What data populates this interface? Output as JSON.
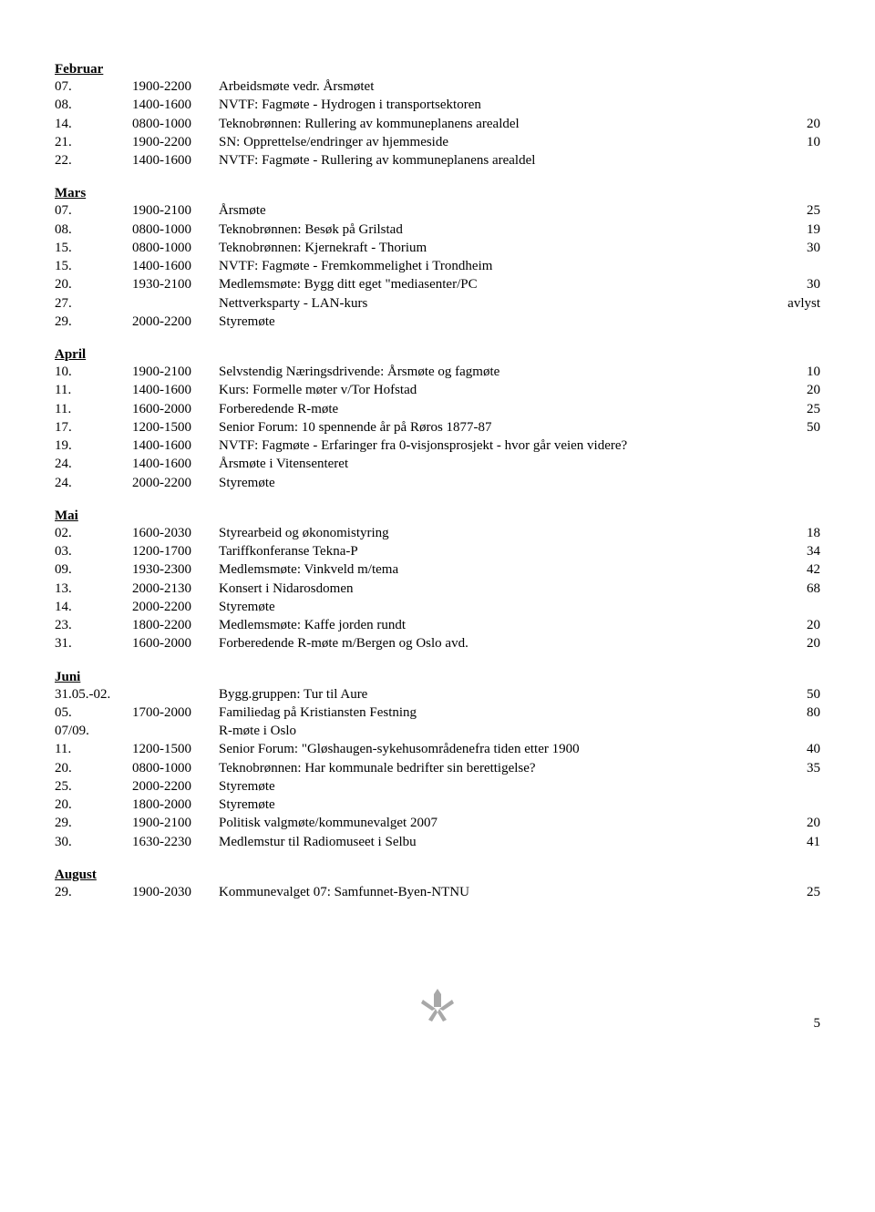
{
  "months": [
    {
      "name": "Februar",
      "rows": [
        {
          "day": "07.",
          "time": "1900-2200",
          "desc": "Arbeidsmøte vedr. Årsmøtet",
          "cnt": ""
        },
        {
          "day": "08.",
          "time": "1400-1600",
          "desc": "NVTF: Fagmøte - Hydrogen i transportsektoren",
          "cnt": ""
        },
        {
          "day": "14.",
          "time": "0800-1000",
          "desc": "Teknobrønnen: Rullering av kommuneplanens arealdel",
          "cnt": "20"
        },
        {
          "day": "21.",
          "time": "1900-2200",
          "desc": "SN: Opprettelse/endringer av hjemmeside",
          "cnt": "10"
        },
        {
          "day": "22.",
          "time": "1400-1600",
          "desc": "NVTF: Fagmøte - Rullering av kommuneplanens arealdel",
          "cnt": ""
        }
      ]
    },
    {
      "name": "Mars",
      "rows": [
        {
          "day": "07.",
          "time": "1900-2100",
          "desc": "Årsmøte",
          "cnt": "25"
        },
        {
          "day": "08.",
          "time": "0800-1000",
          "desc": "Teknobrønnen: Besøk på Grilstad",
          "cnt": "19"
        },
        {
          "day": "15.",
          "time": "0800-1000",
          "desc": "Teknobrønnen: Kjernekraft - Thorium",
          "cnt": "30"
        },
        {
          "day": "15.",
          "time": "1400-1600",
          "desc": "NVTF: Fagmøte - Fremkommelighet i Trondheim",
          "cnt": ""
        },
        {
          "day": "20.",
          "time": "1930-2100",
          "desc": "Medlemsmøte: Bygg ditt eget \"mediasenter/PC",
          "cnt": "30"
        },
        {
          "day": "27.",
          "time": "",
          "desc": "Nettverksparty - LAN-kurs",
          "cnt": "avlyst"
        },
        {
          "day": "29.",
          "time": "2000-2200",
          "desc": "Styremøte",
          "cnt": ""
        }
      ]
    },
    {
      "name": "April",
      "rows": [
        {
          "day": "10.",
          "time": "1900-2100",
          "desc": "Selvstendig Næringsdrivende: Årsmøte og fagmøte",
          "cnt": "10"
        },
        {
          "day": "11.",
          "time": "1400-1600",
          "desc": "Kurs: Formelle møter v/Tor Hofstad",
          "cnt": "20"
        },
        {
          "day": "11.",
          "time": "1600-2000",
          "desc": "Forberedende R-møte",
          "cnt": "25"
        },
        {
          "day": "17.",
          "time": "1200-1500",
          "desc": "Senior Forum: 10 spennende år på Røros 1877-87",
          "cnt": "50"
        },
        {
          "day": "19.",
          "time": "1400-1600",
          "desc": "NVTF: Fagmøte - Erfaringer fra 0-visjonsprosjekt - hvor går veien videre?",
          "cnt": ""
        },
        {
          "day": "24.",
          "time": "1400-1600",
          "desc": "Årsmøte i Vitensenteret",
          "cnt": ""
        },
        {
          "day": "24.",
          "time": "2000-2200",
          "desc": "Styremøte",
          "cnt": ""
        }
      ]
    },
    {
      "name": "Mai",
      "rows": [
        {
          "day": "02.",
          "time": "1600-2030",
          "desc": "Styrearbeid og økonomistyring",
          "cnt": "18"
        },
        {
          "day": "03.",
          "time": "1200-1700",
          "desc": "Tariffkonferanse Tekna-P",
          "cnt": "34"
        },
        {
          "day": "09.",
          "time": "1930-2300",
          "desc": "Medlemsmøte: Vinkveld m/tema",
          "cnt": "42"
        },
        {
          "day": "13.",
          "time": "2000-2130",
          "desc": "Konsert i Nidarosdomen",
          "cnt": "68"
        },
        {
          "day": "14.",
          "time": "2000-2200",
          "desc": "Styremøte",
          "cnt": ""
        },
        {
          "day": "23.",
          "time": "1800-2200",
          "desc": "Medlemsmøte: Kaffe jorden rundt",
          "cnt": "20"
        },
        {
          "day": "31.",
          "time": "1600-2000",
          "desc": "Forberedende R-møte m/Bergen og Oslo avd.",
          "cnt": "20"
        }
      ]
    },
    {
      "name": "Juni",
      "rows": [
        {
          "day": "31.05.-02.",
          "time": "",
          "desc": "Bygg.gruppen: Tur til Aure",
          "cnt": "50"
        },
        {
          "day": "05.",
          "time": "1700-2000",
          "desc": "Familiedag på Kristiansten Festning",
          "cnt": "80"
        },
        {
          "day": "07/09.",
          "time": "",
          "desc": "R-møte i Oslo",
          "cnt": ""
        },
        {
          "day": "11.",
          "time": "1200-1500",
          "desc": "Senior Forum: \"Gløshaugen-sykehusområdenefra tiden etter 1900",
          "cnt": "40"
        },
        {
          "day": "20.",
          "time": "0800-1000",
          "desc": "Teknobrønnen: Har kommunale bedrifter sin berettigelse?",
          "cnt": "35"
        },
        {
          "day": "25.",
          "time": "2000-2200",
          "desc": "Styremøte",
          "cnt": ""
        },
        {
          "day": "20.",
          "time": "1800-2000",
          "desc": "Styremøte",
          "cnt": ""
        },
        {
          "day": "29.",
          "time": "1900-2100",
          "desc": "Politisk valgmøte/kommunevalget 2007",
          "cnt": "20"
        },
        {
          "day": "30.",
          "time": "1630-2230",
          "desc": "Medlemstur til Radiomuseet i Selbu",
          "cnt": "41"
        }
      ]
    },
    {
      "name": "August",
      "rows": [
        {
          "day": "29.",
          "time": "1900-2030",
          "desc": "Kommunevalget 07: Samfunnet-Byen-NTNU",
          "cnt": "25"
        }
      ]
    }
  ],
  "page_number": "5",
  "logo_color": "#a8a8a8"
}
